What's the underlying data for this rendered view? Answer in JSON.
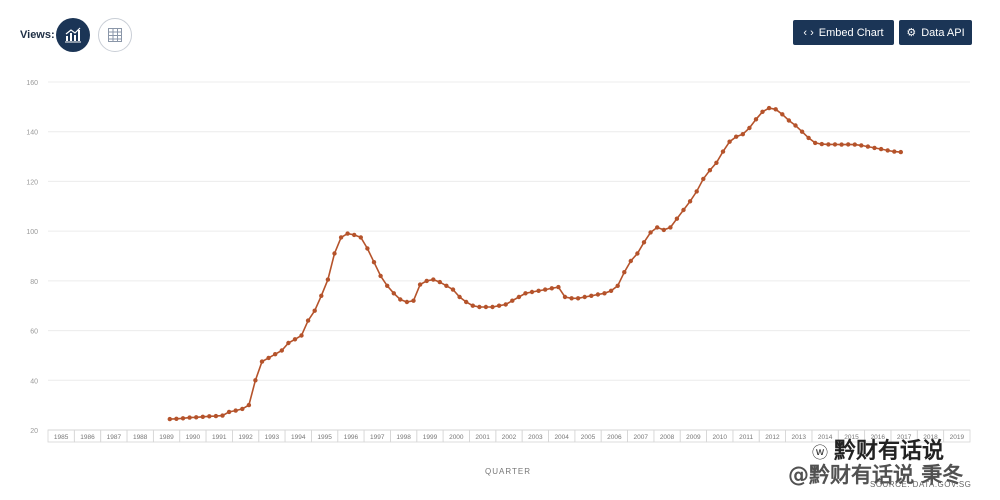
{
  "header": {
    "views_label": "Views:",
    "embed_label": "Embed Chart",
    "api_label": "Data API"
  },
  "colors": {
    "navy": "#1b3556",
    "series": "#b5532b",
    "grid": "#ececec"
  },
  "icons": {
    "chart_view": "chart-icon",
    "table_view": "table-icon",
    "embed": "code-icon",
    "api": "api-icon"
  },
  "chart_data": {
    "type": "line",
    "xlabel": "QUARTER",
    "ylabel": "",
    "ylim": [
      20,
      160
    ],
    "yticks": [
      20,
      40,
      60,
      80,
      100,
      120,
      140,
      160
    ],
    "year_labels": [
      "1985",
      "1986",
      "1987",
      "1988",
      "1989",
      "1990",
      "1991",
      "1992",
      "1993",
      "1994",
      "1995",
      "1996",
      "1997",
      "1998",
      "1999",
      "2000",
      "2001",
      "2002",
      "2003",
      "2004",
      "2005",
      "2006",
      "2007",
      "2008",
      "2009",
      "2010",
      "2011",
      "2012",
      "2013",
      "2014",
      "2015",
      "2016",
      "2017",
      "2018",
      "2019"
    ],
    "grid": true,
    "legend": "none",
    "series": [
      {
        "start_quarter": "1989-Q3",
        "values": [
          24.4,
          24.5,
          24.7,
          25.0,
          25.1,
          25.3,
          25.5,
          25.6,
          25.8,
          27.3,
          27.8,
          28.5,
          30.0,
          40.0,
          47.5,
          49.0,
          50.5,
          52.0,
          55.0,
          56.5,
          58.0,
          64.0,
          68.0,
          74.0,
          80.5,
          91.0,
          97.5,
          99.0,
          98.5,
          97.5,
          93.0,
          87.5,
          82.0,
          78.0,
          75.0,
          72.5,
          71.5,
          72.0,
          78.5,
          80.0,
          80.5,
          79.5,
          78.0,
          76.5,
          73.5,
          71.5,
          70.0,
          69.5,
          69.5,
          69.5,
          70.0,
          70.5,
          72.0,
          73.5,
          75.0,
          75.5,
          76.0,
          76.5,
          77.0,
          77.5,
          73.5,
          73.0,
          73.0,
          73.5,
          74.0,
          74.5,
          75.0,
          76.0,
          78.0,
          83.5,
          88.0,
          91.0,
          95.5,
          99.5,
          101.5,
          100.5,
          101.5,
          105.0,
          108.5,
          112.0,
          116.0,
          121.0,
          124.5,
          127.5,
          132.0,
          136.0,
          138.0,
          139.0,
          141.5,
          145.0,
          148.0,
          149.5,
          149.0,
          147.0,
          144.5,
          142.5,
          140.0,
          137.5,
          135.5,
          135.0,
          134.9,
          134.9,
          134.8,
          134.9,
          134.8,
          134.5,
          134.0,
          133.5,
          133.0,
          132.5,
          132.0,
          131.8
        ]
      }
    ]
  },
  "watermark": {
    "line1": "黔财有话说",
    "line2": "@黔财有话说 秉冬"
  },
  "source": "SOURCE: DATA.GOV.SG"
}
